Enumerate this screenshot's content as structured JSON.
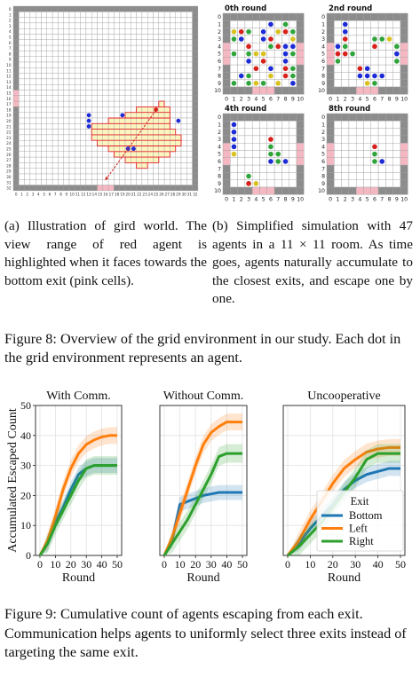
{
  "figure8": {
    "big_grid": {
      "size": 33,
      "exit_label": ""
    },
    "small_titles": [
      "0th round",
      "2nd round",
      "4th round",
      "8th round"
    ],
    "small_axis_ticks": [
      "0",
      "1",
      "2",
      "3",
      "4",
      "5",
      "6",
      "7",
      "8",
      "9",
      "10"
    ],
    "caption_a": "(a) Illustration of gird world. The view range of red agent is highlighted when it faces towards the bottom exit (pink cells).",
    "caption_b": "(b) Simplified simulation with 47 agents in a 11 × 11 room. As time goes, agents naturally accumulate to the closest exits, and escape one by one.",
    "caption": "Figure 8: Overview of the grid environment in our study. Each dot in the grid environment represents an agent.",
    "colors": {
      "wall": "#8c8c8c",
      "exit": "#f5b8c2",
      "view": "#fbf5c2",
      "view_border": "#e0202a",
      "agent_blue": "#1d2bd6",
      "agent_red": "#d8201c",
      "agent_green": "#2ea43a",
      "agent_yellow": "#d9c21e"
    }
  },
  "figure9": {
    "caption": "Figure 9: Cumulative count of agents escaping from each exit. Communication helps agents to uniformly select three exits instead of targeting the same exit.",
    "ylabel": "Accumulated Escaped Count",
    "xlabel": "Round",
    "legend_title": "Exit",
    "colors": {
      "Bottom": "#1f77b4",
      "Left": "#ff7f0e",
      "Right": "#2ca02c"
    },
    "chart_data": [
      {
        "type": "line",
        "title": "With Comm.",
        "x": [
          0,
          5,
          10,
          15,
          20,
          25,
          30,
          35,
          40,
          45,
          50
        ],
        "xlim": [
          0,
          50
        ],
        "ylim": [
          0,
          50
        ],
        "xticks": [
          "0",
          "10",
          "20",
          "30",
          "40",
          "50"
        ],
        "yticks": [
          "0",
          "10",
          "20",
          "30",
          "40",
          "50"
        ],
        "series": [
          {
            "name": "Bottom",
            "values": [
              0,
              4,
              11,
              16,
              22,
              27,
              29,
              30,
              30,
              30,
              30
            ]
          },
          {
            "name": "Left",
            "values": [
              0,
              5,
              13,
              22,
              29,
              34,
              37,
              38.5,
              39.5,
              40,
              40
            ]
          },
          {
            "name": "Right",
            "values": [
              0,
              4,
              10,
              15,
              20,
              25,
              29,
              30,
              30,
              30,
              30
            ]
          }
        ]
      },
      {
        "type": "line",
        "title": "Without Comm.",
        "x": [
          0,
          5,
          10,
          15,
          20,
          25,
          30,
          35,
          40,
          45,
          50
        ],
        "xlim": [
          0,
          50
        ],
        "ylim": [
          0,
          50
        ],
        "xticks": [
          "0",
          "10",
          "20",
          "30",
          "40",
          "50"
        ],
        "yticks": [],
        "series": [
          {
            "name": "Bottom",
            "values": [
              0,
              5,
              17,
              18,
              19,
              20,
              20.5,
              21,
              21,
              21,
              21
            ]
          },
          {
            "name": "Left",
            "values": [
              0,
              6,
              14,
              22,
              30,
              37,
              41,
              43,
              44.5,
              44.5,
              44.5
            ]
          },
          {
            "name": "Right",
            "values": [
              0,
              4,
              8,
              12,
              17,
              22,
              27,
              33,
              34,
              34,
              34
            ]
          }
        ]
      },
      {
        "type": "line",
        "title": "Uncooperative",
        "x": [
          0,
          5,
          10,
          15,
          20,
          25,
          30,
          35,
          40,
          45,
          50
        ],
        "xlim": [
          0,
          50
        ],
        "ylim": [
          0,
          50
        ],
        "xticks": [
          "0",
          "10",
          "20",
          "30",
          "40",
          "50"
        ],
        "yticks": [],
        "series": [
          {
            "name": "Bottom",
            "values": [
              0,
              4,
              9,
              13,
              17,
              22,
              25,
              27,
              28,
              29,
              29
            ]
          },
          {
            "name": "Left",
            "values": [
              0,
              5,
              12,
              18,
              24,
              29,
              32,
              34.5,
              35.5,
              36,
              36
            ]
          },
          {
            "name": "Right",
            "values": [
              0,
              3,
              7,
              11,
              16,
              21,
              26,
              32,
              34,
              34,
              34
            ]
          }
        ]
      }
    ]
  }
}
